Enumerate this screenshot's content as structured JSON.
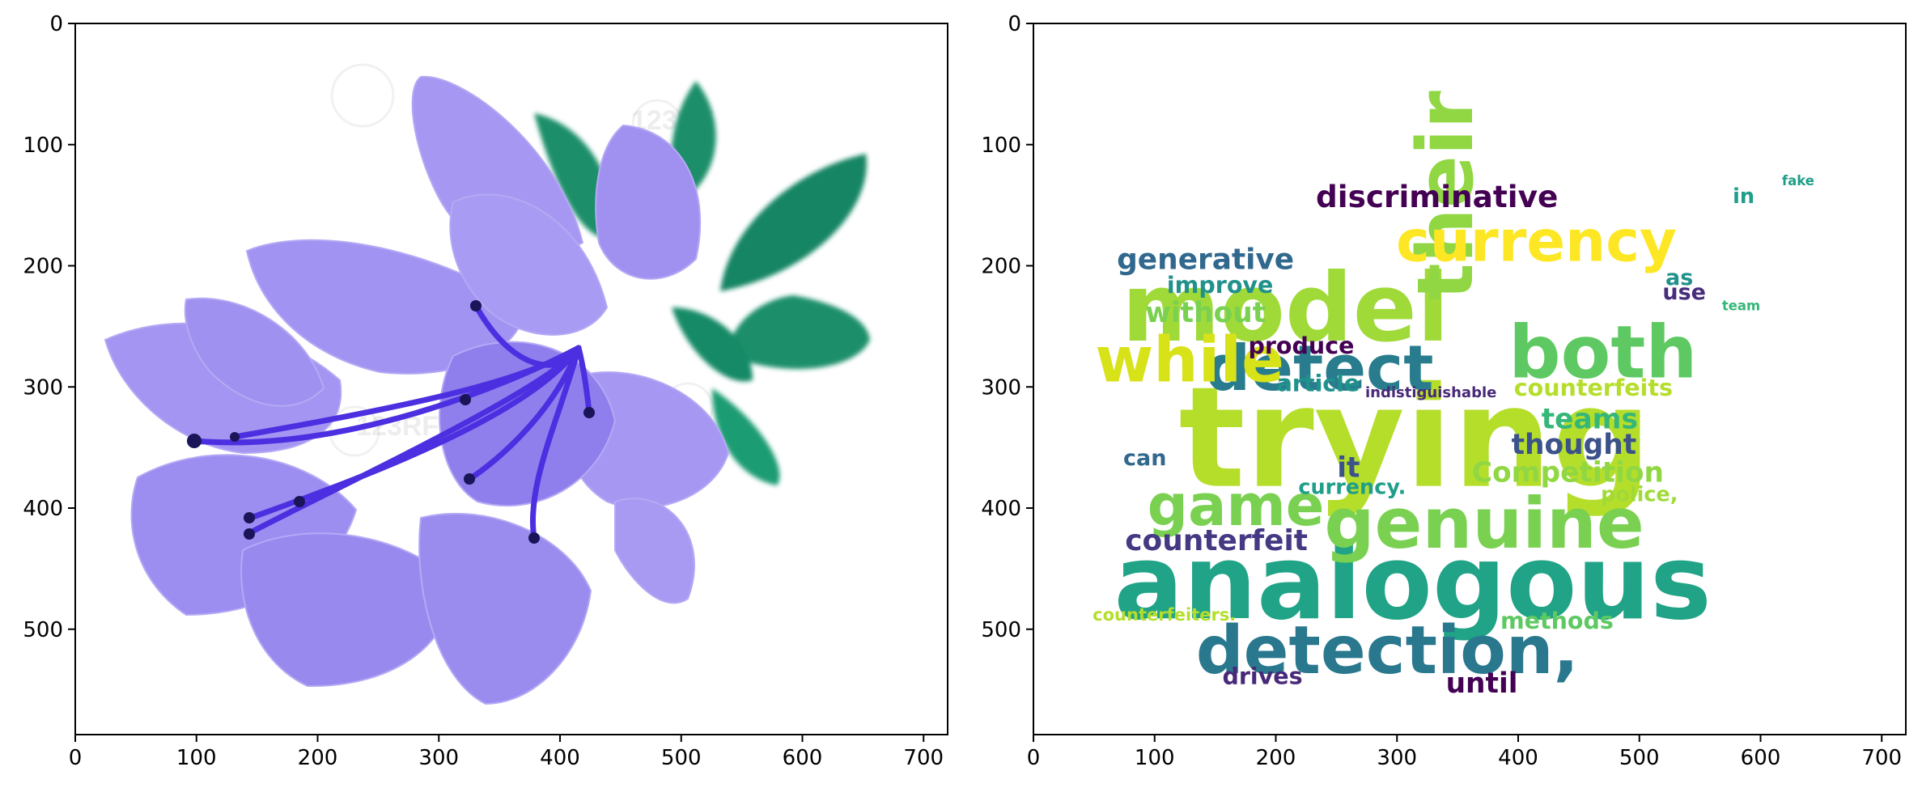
{
  "figure": {
    "panels": [
      {
        "id": "flower",
        "image": {
          "subject": "purple azalea flower with green leaves",
          "petal_color": "#9d8cf0",
          "stamen_color": "#4b2fe0",
          "leaf_color": "#1a8f6b",
          "watermark_text": "123RF"
        },
        "axes": {
          "xticks": [
            "0",
            "100",
            "200",
            "300",
            "400",
            "500",
            "600",
            "700"
          ],
          "yticks": [
            "0",
            "100",
            "200",
            "300",
            "400",
            "500"
          ],
          "xlim": [
            0,
            720
          ],
          "ylim": [
            588,
            0
          ]
        }
      },
      {
        "id": "wordcloud",
        "axes": {
          "xticks": [
            "0",
            "100",
            "200",
            "300",
            "400",
            "500",
            "600",
            "700"
          ],
          "yticks": [
            "0",
            "100",
            "200",
            "300",
            "400",
            "500"
          ],
          "xlim": [
            0,
            720
          ],
          "ylim": [
            588,
            0
          ]
        }
      }
    ]
  },
  "chart_data": [
    {
      "type": "image",
      "axes": {
        "xlim": [
          0,
          720
        ],
        "ylim": [
          588,
          0
        ],
        "grid": false
      }
    },
    {
      "type": "wordcloud",
      "axes": {
        "xlim": [
          0,
          720
        ],
        "ylim": [
          588,
          0
        ],
        "grid": false
      },
      "colormap": "viridis",
      "words": [
        {
          "text": "trying",
          "x": 315,
          "y": 342,
          "size": 115,
          "color": "#b5de2b",
          "rotate": false
        },
        {
          "text": "analogous",
          "x": 313,
          "y": 462,
          "size": 85,
          "color": "#20a386",
          "rotate": false
        },
        {
          "text": "model",
          "x": 208,
          "y": 235,
          "size": 78,
          "color": "#a0da39",
          "rotate": false
        },
        {
          "text": "their",
          "x": 340,
          "y": 142,
          "size": 64,
          "color": "#90d743",
          "rotate": true
        },
        {
          "text": "genuine",
          "x": 372,
          "y": 413,
          "size": 58,
          "color": "#7ad151",
          "rotate": false
        },
        {
          "text": "detection,",
          "x": 292,
          "y": 518,
          "size": 55,
          "color": "#2a788e",
          "rotate": false
        },
        {
          "text": "detect",
          "x": 236,
          "y": 285,
          "size": 52,
          "color": "#287c8e",
          "rotate": false
        },
        {
          "text": "both",
          "x": 470,
          "y": 272,
          "size": 60,
          "color": "#5ec962",
          "rotate": false
        },
        {
          "text": "currency",
          "x": 415,
          "y": 180,
          "size": 47,
          "color": "#fde725",
          "rotate": false
        },
        {
          "text": "while",
          "x": 129,
          "y": 278,
          "size": 52,
          "color": "#d8e219",
          "rotate": false
        },
        {
          "text": "game",
          "x": 167,
          "y": 398,
          "size": 47,
          "color": "#7ad151",
          "rotate": false
        },
        {
          "text": "discriminative",
          "x": 333,
          "y": 143,
          "size": 25,
          "color": "#440154",
          "rotate": false
        },
        {
          "text": "generative",
          "x": 142,
          "y": 195,
          "size": 24,
          "color": "#31688e",
          "rotate": false
        },
        {
          "text": "improve",
          "x": 154,
          "y": 216,
          "size": 19,
          "color": "#21918c",
          "rotate": false
        },
        {
          "text": "without",
          "x": 142,
          "y": 239,
          "size": 23,
          "color": "#7ad151",
          "rotate": false
        },
        {
          "text": "produce",
          "x": 221,
          "y": 266,
          "size": 19,
          "color": "#440154",
          "rotate": false
        },
        {
          "text": "article",
          "x": 235,
          "y": 297,
          "size": 19,
          "color": "#21918c",
          "rotate": false
        },
        {
          "text": "indistiguishable",
          "x": 328,
          "y": 305,
          "size": 12,
          "color": "#482878",
          "rotate": false
        },
        {
          "text": "counterfeits",
          "x": 462,
          "y": 301,
          "size": 19,
          "color": "#b5de2b",
          "rotate": false
        },
        {
          "text": "teams",
          "x": 459,
          "y": 327,
          "size": 23,
          "color": "#35b779",
          "rotate": false
        },
        {
          "text": "thought",
          "x": 446,
          "y": 348,
          "size": 23,
          "color": "#3b528b",
          "rotate": false
        },
        {
          "text": "Competition",
          "x": 441,
          "y": 371,
          "size": 23,
          "color": "#90d743",
          "rotate": false
        },
        {
          "text": "police,",
          "x": 500,
          "y": 389,
          "size": 17,
          "color": "#a0da39",
          "rotate": false
        },
        {
          "text": "can",
          "x": 92,
          "y": 359,
          "size": 18,
          "color": "#31688e",
          "rotate": false
        },
        {
          "text": "it",
          "x": 260,
          "y": 367,
          "size": 23,
          "color": "#3b528b",
          "rotate": false
        },
        {
          "text": "currency.",
          "x": 263,
          "y": 383,
          "size": 17,
          "color": "#1f9e89",
          "rotate": false
        },
        {
          "text": "counterfeit",
          "x": 151,
          "y": 427,
          "size": 24,
          "color": "#443983",
          "rotate": false
        },
        {
          "text": "counterfeiters.",
          "x": 108,
          "y": 488,
          "size": 14,
          "color": "#b5de2b",
          "rotate": false
        },
        {
          "text": "methods",
          "x": 432,
          "y": 493,
          "size": 19,
          "color": "#5ec962",
          "rotate": false
        },
        {
          "text": "drives",
          "x": 189,
          "y": 539,
          "size": 19,
          "color": "#482878",
          "rotate": false
        },
        {
          "text": "until",
          "x": 370,
          "y": 545,
          "size": 23,
          "color": "#440154",
          "rotate": false
        },
        {
          "text": "in",
          "x": 586,
          "y": 143,
          "size": 17,
          "color": "#1f9e89",
          "rotate": false
        },
        {
          "text": "fake",
          "x": 631,
          "y": 130,
          "size": 11,
          "color": "#1f9e89",
          "rotate": false
        },
        {
          "text": "as",
          "x": 533,
          "y": 210,
          "size": 18,
          "color": "#21918c",
          "rotate": false
        },
        {
          "text": "use",
          "x": 537,
          "y": 222,
          "size": 18,
          "color": "#472d7b",
          "rotate": false
        },
        {
          "text": "team",
          "x": 584,
          "y": 233,
          "size": 11,
          "color": "#35b779",
          "rotate": false
        }
      ]
    }
  ]
}
